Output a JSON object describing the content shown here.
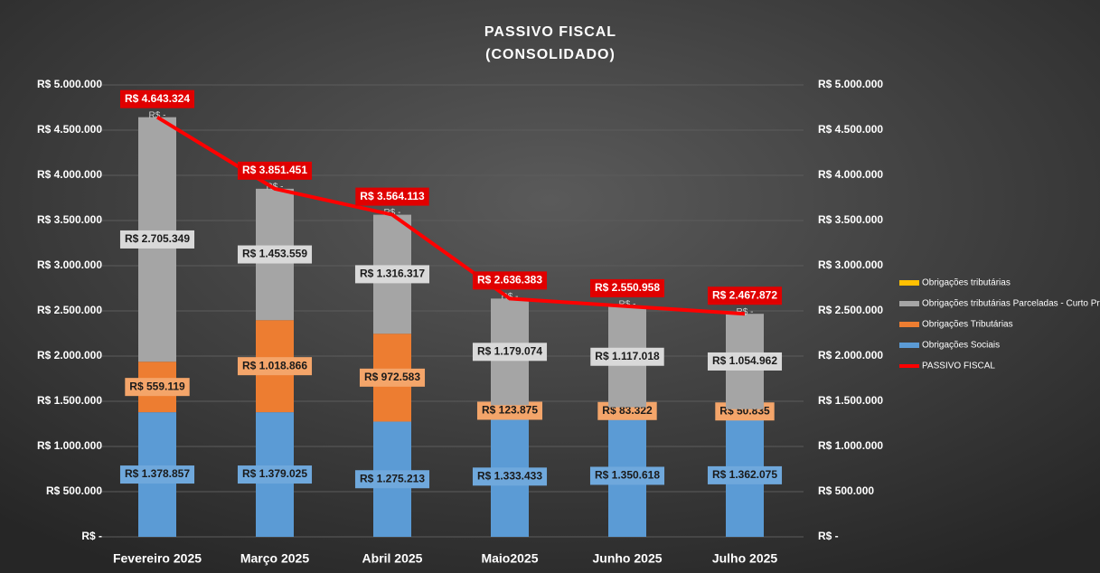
{
  "chart_data": {
    "type": "bar",
    "title": "PASSIVO FISCAL",
    "subtitle": "(CONSOLIDADO)",
    "stacked": true,
    "categories": [
      "Fevereiro 2025",
      "Março 2025",
      "Abril 2025",
      "Maio2025",
      "Junho 2025",
      "Julho 2025"
    ],
    "series": [
      {
        "name": "Obrigações tributárias",
        "type": "bar",
        "color": "#ffc000",
        "values": [
          0,
          0,
          0,
          0,
          0,
          0
        ],
        "value_labels": [
          "R$ -",
          "R$ -",
          "R$ -",
          "R$ -",
          "R$ -",
          "R$ -"
        ]
      },
      {
        "name": "Obrigações tributárias Parceladas - Curto Prazo",
        "type": "bar",
        "color": "#a5a5a5",
        "values": [
          2705349,
          1453559,
          1316317,
          1179074,
          1117018,
          1054962
        ],
        "value_labels": [
          "R$ 2.705.349",
          "R$ 1.453.559",
          "R$ 1.316.317",
          "R$ 1.179.074",
          "R$ 1.117.018",
          "R$ 1.054.962"
        ]
      },
      {
        "name": "Obrigações Tributárias",
        "type": "bar",
        "color": "#ed7d31",
        "values": [
          559119,
          1018866,
          972583,
          123875,
          83322,
          50835
        ],
        "value_labels": [
          "R$ 559.119",
          "R$ 1.018.866",
          "R$ 972.583",
          "R$ 123.875",
          "R$ 83.322",
          "R$ 50.835"
        ]
      },
      {
        "name": "Obrigações Sociais",
        "type": "bar",
        "color": "#5b9bd5",
        "values": [
          1378857,
          1379025,
          1275213,
          1333433,
          1350618,
          1362075
        ],
        "value_labels": [
          "R$ 1.378.857",
          "R$ 1.379.025",
          "R$ 1.275.213",
          "R$ 1.333.433",
          "R$ 1.350.618",
          "R$ 1.362.075"
        ]
      },
      {
        "name": "PASSIVO FISCAL",
        "type": "line",
        "axis": "y2",
        "color": "#ff0000",
        "values": [
          4643324,
          3851451,
          3564113,
          2636383,
          2550958,
          2467872
        ],
        "value_labels": [
          "R$ 4.643.324",
          "R$ 3.851.451",
          "R$ 3.564.113",
          "R$ 2.636.383",
          "R$ 2.550.958",
          "R$ 2.467.872"
        ]
      }
    ],
    "ylim": [
      0,
      5000000
    ],
    "yticks": [
      {
        "value": 0,
        "label": "R$ -"
      },
      {
        "value": 500000,
        "label": "R$ 500.000"
      },
      {
        "value": 1000000,
        "label": "R$ 1.000.000"
      },
      {
        "value": 1500000,
        "label": "R$ 1.500.000"
      },
      {
        "value": 2000000,
        "label": "R$ 2.000.000"
      },
      {
        "value": 2500000,
        "label": "R$ 2.500.000"
      },
      {
        "value": 3000000,
        "label": "R$ 3.000.000"
      },
      {
        "value": 3500000,
        "label": "R$ 3.500.000"
      },
      {
        "value": 4000000,
        "label": "R$ 4.000.000"
      },
      {
        "value": 4500000,
        "label": "R$ 4.500.000"
      },
      {
        "value": 5000000,
        "label": "R$ 5.000.000"
      }
    ],
    "y2lim": [
      0,
      5000000
    ],
    "y2ticks": [
      {
        "value": 0,
        "label": "R$ -"
      },
      {
        "value": 500000,
        "label": "R$ 500.000"
      },
      {
        "value": 1000000,
        "label": "R$ 1.000.000"
      },
      {
        "value": 1500000,
        "label": "R$ 1.500.000"
      },
      {
        "value": 2000000,
        "label": "R$ 2.000.000"
      },
      {
        "value": 2500000,
        "label": "R$ 2.500.000"
      },
      {
        "value": 3000000,
        "label": "R$ 3.000.000"
      },
      {
        "value": 3500000,
        "label": "R$ 3.500.000"
      },
      {
        "value": 4000000,
        "label": "R$ 4.000.000"
      },
      {
        "value": 4500000,
        "label": "R$ 4.500.000"
      },
      {
        "value": 5000000,
        "label": "R$ 5.000.000"
      }
    ],
    "grid": true,
    "legend": "right"
  }
}
